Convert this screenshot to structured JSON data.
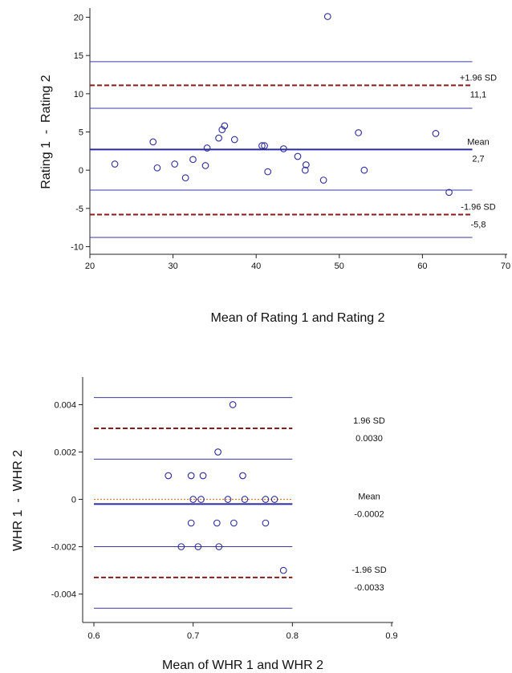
{
  "chart_data": [
    {
      "type": "scatter",
      "xlabel": "Mean of Rating 1 and Rating 2",
      "ylabel": "Rating 1  -  Rating 2",
      "xlim": [
        20,
        70
      ],
      "ylim": [
        -11,
        21
      ],
      "xticks": [
        20,
        30,
        40,
        50,
        60,
        70
      ],
      "yticks": [
        -10,
        -5,
        0,
        5,
        10,
        15,
        20
      ],
      "xticklabels": [
        "20",
        "30",
        "40",
        "50",
        "60",
        "70"
      ],
      "yticklabels": [
        "-10",
        "-5",
        "0",
        "5",
        "10",
        "15",
        "20"
      ],
      "reference_lines": {
        "mean": 2.7,
        "upper_loa": 11.1,
        "lower_loa": -5.8,
        "ci_lines": [
          14.2,
          8.1,
          -2.6,
          -8.8
        ],
        "line_x_range": [
          20,
          66
        ]
      },
      "labels": {
        "upper_loa_name": "+1.96 SD",
        "upper_loa_value": "11,1",
        "mean_name": "Mean",
        "mean_value": "2,7",
        "lower_loa_name": "-1.96 SD",
        "lower_loa_value": "-5,8"
      },
      "points": [
        [
          23.0,
          0.8
        ],
        [
          27.6,
          3.7
        ],
        [
          28.1,
          0.3
        ],
        [
          30.2,
          0.8
        ],
        [
          31.5,
          -1.0
        ],
        [
          32.4,
          1.4
        ],
        [
          33.9,
          0.6
        ],
        [
          34.1,
          2.9
        ],
        [
          35.5,
          4.2
        ],
        [
          35.9,
          5.3
        ],
        [
          36.2,
          5.8
        ],
        [
          37.4,
          4.0
        ],
        [
          40.7,
          3.2
        ],
        [
          41.0,
          3.2
        ],
        [
          41.4,
          -0.2
        ],
        [
          43.3,
          2.8
        ],
        [
          45.0,
          1.8
        ],
        [
          45.9,
          0.0
        ],
        [
          46.0,
          0.7
        ],
        [
          48.1,
          -1.3
        ],
        [
          48.6,
          20.1
        ],
        [
          52.3,
          4.9
        ],
        [
          53.0,
          0.0
        ],
        [
          61.6,
          4.8
        ],
        [
          63.2,
          -2.9
        ]
      ],
      "colors": {
        "points": "#2b2b9e",
        "mean_line": "#2b2b9e",
        "ci_line": "#3a3aa6",
        "loa_line": "#8b1a1a"
      }
    },
    {
      "type": "scatter",
      "xlabel": "Mean of WHR 1 and WHR 2",
      "ylabel": "WHR 1  -  WHR 2",
      "xlim": [
        0.6,
        0.9
      ],
      "ylim": [
        -0.0052,
        0.0051
      ],
      "xticks": [
        0.6,
        0.7,
        0.8,
        0.9
      ],
      "yticks": [
        -0.004,
        -0.002,
        0,
        0.002,
        0.004
      ],
      "xticklabels": [
        "0.6",
        "0.7",
        "0.8",
        "0.9"
      ],
      "yticklabels": [
        "-0.004",
        "-0.002",
        "0",
        "0.002",
        "0.004"
      ],
      "reference_lines": {
        "mean": -0.0002,
        "zero_line": 0,
        "upper_loa": 0.003,
        "lower_loa": -0.0033,
        "ci_lines": [
          0.0043,
          0.0017,
          -0.002,
          -0.0046
        ],
        "line_x_range": [
          0.6,
          0.8
        ]
      },
      "labels": {
        "upper_loa_name": "1.96 SD",
        "upper_loa_value": "0.0030",
        "mean_name": "Mean",
        "mean_value": "-0.0002",
        "lower_loa_name": "-1.96 SD",
        "lower_loa_value": "-0.0033"
      },
      "points": [
        [
          0.74,
          0.004
        ],
        [
          0.725,
          0.002
        ],
        [
          0.675,
          0.001
        ],
        [
          0.698,
          0.001
        ],
        [
          0.71,
          0.001
        ],
        [
          0.75,
          0.001
        ],
        [
          0.7,
          0.0
        ],
        [
          0.708,
          0.0
        ],
        [
          0.735,
          0.0
        ],
        [
          0.752,
          0.0
        ],
        [
          0.773,
          0.0
        ],
        [
          0.782,
          0.0
        ],
        [
          0.698,
          -0.001
        ],
        [
          0.724,
          -0.001
        ],
        [
          0.741,
          -0.001
        ],
        [
          0.773,
          -0.001
        ],
        [
          0.688,
          -0.002
        ],
        [
          0.705,
          -0.002
        ],
        [
          0.726,
          -0.002
        ],
        [
          0.791,
          -0.003
        ]
      ],
      "colors": {
        "points": "#2b2b9e",
        "mean_line": "#2b2b9e",
        "ci_line": "#3a3aa6",
        "loa_line": "#8b1a1a",
        "zero_line": "#e07b00"
      }
    }
  ]
}
